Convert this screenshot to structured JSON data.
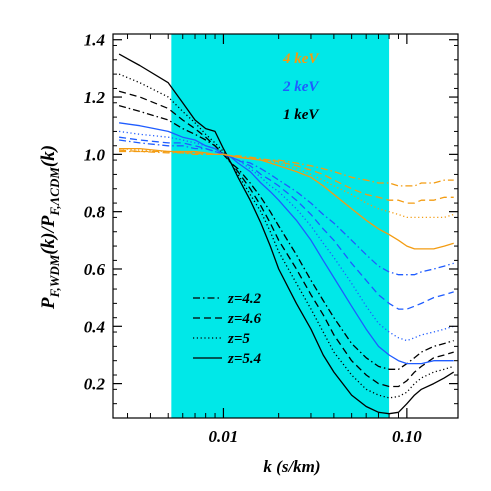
{
  "chart_data": {
    "type": "line",
    "xlabel": "k (s/km)",
    "ylabel_main": "P",
    "ylabel_sub1": "F,WDM",
    "ylabel_mid": "(k)/P",
    "ylabel_sub2": "F,ΛCDM",
    "ylabel_end": "(k)",
    "x_scale": "log",
    "xlim": [
      0.0025,
      0.19
    ],
    "ylim": [
      0.08,
      1.42
    ],
    "x_ticks": [
      {
        "value": 0.01,
        "label": "0.01"
      },
      {
        "value": 0.1,
        "label": "0.10"
      }
    ],
    "y_ticks": [
      {
        "value": 0.2,
        "label": "0.2"
      },
      {
        "value": 0.4,
        "label": "0.4"
      },
      {
        "value": 0.6,
        "label": "0.6"
      },
      {
        "value": 0.8,
        "label": "0.8"
      },
      {
        "value": 1.0,
        "label": "1.0"
      },
      {
        "value": 1.2,
        "label": "1.2"
      },
      {
        "value": 1.4,
        "label": "1.4"
      }
    ],
    "shaded_band": {
      "xmin": 0.0052,
      "xmax": 0.08,
      "color": "#00e8e8"
    },
    "grid": false,
    "legend_styles": [
      {
        "label": "z=4.2",
        "dash": "dashdot"
      },
      {
        "label": "z=4.6",
        "dash": "dashed"
      },
      {
        "label": "z=5",
        "dash": "dotted"
      },
      {
        "label": "z=5.4",
        "dash": "solid"
      }
    ],
    "mass_labels": [
      {
        "label": "4 keV",
        "color": "#f39c12"
      },
      {
        "label": "2 keV",
        "color": "#1f5cff"
      },
      {
        "label": "1 keV",
        "color": "#000000"
      }
    ],
    "series": [
      {
        "mass": "1 keV",
        "z": "5.4",
        "dash": "solid",
        "color": "#000000",
        "x": [
          0.0027,
          0.0035,
          0.005,
          0.006,
          0.007,
          0.008,
          0.009,
          0.01,
          0.011,
          0.012,
          0.014,
          0.016,
          0.018,
          0.02,
          0.025,
          0.03,
          0.035,
          0.04,
          0.05,
          0.06,
          0.07,
          0.08,
          0.09,
          0.1,
          0.11,
          0.12,
          0.14,
          0.16,
          0.18
        ],
        "y": [
          1.35,
          1.31,
          1.25,
          1.18,
          1.12,
          1.09,
          1.08,
          1.02,
          0.97,
          0.92,
          0.84,
          0.76,
          0.68,
          0.6,
          0.48,
          0.39,
          0.3,
          0.24,
          0.16,
          0.12,
          0.1,
          0.095,
          0.1,
          0.13,
          0.16,
          0.18,
          0.2,
          0.22,
          0.24
        ]
      },
      {
        "mass": "1 keV",
        "z": "5",
        "dash": "dotted",
        "color": "#000000",
        "x": [
          0.0027,
          0.0035,
          0.005,
          0.006,
          0.007,
          0.008,
          0.009,
          0.01,
          0.011,
          0.012,
          0.014,
          0.016,
          0.018,
          0.02,
          0.025,
          0.03,
          0.035,
          0.04,
          0.05,
          0.06,
          0.07,
          0.08,
          0.09,
          0.1,
          0.11,
          0.12,
          0.14,
          0.16,
          0.18
        ],
        "y": [
          1.28,
          1.25,
          1.2,
          1.15,
          1.11,
          1.07,
          1.04,
          1.01,
          0.97,
          0.93,
          0.86,
          0.8,
          0.73,
          0.66,
          0.55,
          0.46,
          0.38,
          0.31,
          0.23,
          0.18,
          0.16,
          0.15,
          0.155,
          0.17,
          0.2,
          0.22,
          0.24,
          0.25,
          0.26
        ]
      },
      {
        "mass": "1 keV",
        "z": "4.6",
        "dash": "dashed",
        "color": "#000000",
        "x": [
          0.0027,
          0.0035,
          0.005,
          0.006,
          0.007,
          0.008,
          0.009,
          0.01,
          0.011,
          0.012,
          0.014,
          0.016,
          0.018,
          0.02,
          0.025,
          0.03,
          0.035,
          0.04,
          0.05,
          0.06,
          0.07,
          0.08,
          0.09,
          0.1,
          0.11,
          0.12,
          0.14,
          0.16,
          0.18
        ],
        "y": [
          1.22,
          1.2,
          1.16,
          1.12,
          1.09,
          1.06,
          1.03,
          1.0,
          0.97,
          0.94,
          0.88,
          0.82,
          0.76,
          0.7,
          0.6,
          0.51,
          0.44,
          0.37,
          0.28,
          0.23,
          0.2,
          0.19,
          0.19,
          0.21,
          0.24,
          0.26,
          0.29,
          0.3,
          0.31
        ]
      },
      {
        "mass": "1 keV",
        "z": "4.2",
        "dash": "dashdot",
        "color": "#000000",
        "x": [
          0.0027,
          0.0035,
          0.005,
          0.006,
          0.007,
          0.008,
          0.009,
          0.01,
          0.011,
          0.012,
          0.014,
          0.016,
          0.018,
          0.02,
          0.025,
          0.03,
          0.035,
          0.04,
          0.05,
          0.06,
          0.07,
          0.08,
          0.09,
          0.1,
          0.11,
          0.12,
          0.14,
          0.16,
          0.18
        ],
        "y": [
          1.17,
          1.15,
          1.12,
          1.09,
          1.07,
          1.05,
          1.03,
          1.0,
          0.97,
          0.95,
          0.9,
          0.85,
          0.8,
          0.75,
          0.65,
          0.56,
          0.49,
          0.43,
          0.34,
          0.29,
          0.26,
          0.25,
          0.25,
          0.27,
          0.29,
          0.31,
          0.33,
          0.34,
          0.35
        ]
      },
      {
        "mass": "2 keV",
        "z": "5.4",
        "dash": "solid",
        "color": "#1f5cff",
        "x": [
          0.0027,
          0.0035,
          0.005,
          0.006,
          0.007,
          0.008,
          0.009,
          0.01,
          0.011,
          0.012,
          0.014,
          0.016,
          0.018,
          0.02,
          0.025,
          0.03,
          0.035,
          0.04,
          0.05,
          0.06,
          0.07,
          0.08,
          0.09,
          0.1,
          0.11,
          0.12,
          0.14,
          0.16,
          0.18
        ],
        "y": [
          1.11,
          1.1,
          1.08,
          1.06,
          1.05,
          1.03,
          1.02,
          1.0,
          0.99,
          0.97,
          0.94,
          0.9,
          0.87,
          0.84,
          0.77,
          0.7,
          0.63,
          0.57,
          0.47,
          0.39,
          0.33,
          0.3,
          0.28,
          0.27,
          0.27,
          0.27,
          0.28,
          0.28,
          0.28
        ]
      },
      {
        "mass": "2 keV",
        "z": "5",
        "dash": "dotted",
        "color": "#1f5cff",
        "x": [
          0.0027,
          0.0035,
          0.005,
          0.006,
          0.007,
          0.008,
          0.009,
          0.01,
          0.011,
          0.012,
          0.014,
          0.016,
          0.018,
          0.02,
          0.025,
          0.03,
          0.035,
          0.04,
          0.05,
          0.06,
          0.07,
          0.08,
          0.09,
          0.1,
          0.11,
          0.12,
          0.14,
          0.16,
          0.18
        ],
        "y": [
          1.08,
          1.07,
          1.06,
          1.05,
          1.04,
          1.03,
          1.02,
          1.0,
          0.99,
          0.98,
          0.95,
          0.92,
          0.89,
          0.87,
          0.81,
          0.75,
          0.69,
          0.64,
          0.55,
          0.47,
          0.41,
          0.38,
          0.36,
          0.35,
          0.36,
          0.37,
          0.38,
          0.39,
          0.4
        ]
      },
      {
        "mass": "2 keV",
        "z": "4.6",
        "dash": "dashed",
        "color": "#1f5cff",
        "x": [
          0.0027,
          0.0035,
          0.005,
          0.006,
          0.007,
          0.008,
          0.009,
          0.01,
          0.011,
          0.012,
          0.014,
          0.016,
          0.018,
          0.02,
          0.025,
          0.03,
          0.035,
          0.04,
          0.05,
          0.06,
          0.07,
          0.08,
          0.09,
          0.1,
          0.11,
          0.12,
          0.14,
          0.16,
          0.18
        ],
        "y": [
          1.06,
          1.05,
          1.04,
          1.04,
          1.03,
          1.02,
          1.01,
          1.0,
          0.99,
          0.98,
          0.96,
          0.93,
          0.91,
          0.89,
          0.84,
          0.79,
          0.74,
          0.7,
          0.62,
          0.56,
          0.51,
          0.48,
          0.46,
          0.46,
          0.47,
          0.48,
          0.5,
          0.51,
          0.52
        ]
      },
      {
        "mass": "2 keV",
        "z": "4.2",
        "dash": "dashdot",
        "color": "#1f5cff",
        "x": [
          0.0027,
          0.0035,
          0.005,
          0.006,
          0.007,
          0.008,
          0.009,
          0.01,
          0.011,
          0.012,
          0.014,
          0.016,
          0.018,
          0.02,
          0.025,
          0.03,
          0.035,
          0.04,
          0.05,
          0.06,
          0.07,
          0.08,
          0.09,
          0.1,
          0.11,
          0.12,
          0.14,
          0.16,
          0.18
        ],
        "y": [
          1.05,
          1.04,
          1.03,
          1.03,
          1.02,
          1.02,
          1.01,
          1.0,
          0.99,
          0.98,
          0.97,
          0.95,
          0.93,
          0.91,
          0.87,
          0.83,
          0.79,
          0.76,
          0.7,
          0.65,
          0.61,
          0.59,
          0.58,
          0.58,
          0.58,
          0.59,
          0.6,
          0.61,
          0.62
        ]
      },
      {
        "mass": "4 keV",
        "z": "5.4",
        "dash": "solid",
        "color": "#f39c12",
        "x": [
          0.0027,
          0.0035,
          0.005,
          0.006,
          0.007,
          0.008,
          0.009,
          0.01,
          0.011,
          0.012,
          0.014,
          0.016,
          0.018,
          0.02,
          0.025,
          0.03,
          0.035,
          0.04,
          0.05,
          0.06,
          0.07,
          0.08,
          0.09,
          0.1,
          0.11,
          0.12,
          0.14,
          0.16,
          0.18
        ],
        "y": [
          1.02,
          1.02,
          1.01,
          1.01,
          1.01,
          1.005,
          1.0,
          1.0,
          0.995,
          0.99,
          0.985,
          0.98,
          0.97,
          0.96,
          0.94,
          0.92,
          0.89,
          0.86,
          0.81,
          0.77,
          0.74,
          0.72,
          0.7,
          0.68,
          0.67,
          0.67,
          0.67,
          0.68,
          0.69
        ]
      },
      {
        "mass": "4 keV",
        "z": "5",
        "dash": "dotted",
        "color": "#f39c12",
        "x": [
          0.0027,
          0.0035,
          0.005,
          0.006,
          0.007,
          0.008,
          0.009,
          0.01,
          0.011,
          0.012,
          0.014,
          0.016,
          0.018,
          0.02,
          0.025,
          0.03,
          0.035,
          0.04,
          0.05,
          0.06,
          0.07,
          0.08,
          0.09,
          0.1,
          0.11,
          0.12,
          0.14,
          0.16,
          0.18
        ],
        "y": [
          1.02,
          1.015,
          1.01,
          1.01,
          1.005,
          1.005,
          1.0,
          1.0,
          0.995,
          0.99,
          0.985,
          0.98,
          0.975,
          0.97,
          0.95,
          0.93,
          0.91,
          0.89,
          0.86,
          0.83,
          0.81,
          0.8,
          0.79,
          0.78,
          0.78,
          0.78,
          0.78,
          0.78,
          0.79
        ]
      },
      {
        "mass": "4 keV",
        "z": "4.6",
        "dash": "dashed",
        "color": "#f39c12",
        "x": [
          0.0027,
          0.0035,
          0.005,
          0.006,
          0.007,
          0.008,
          0.009,
          0.01,
          0.011,
          0.012,
          0.014,
          0.016,
          0.018,
          0.02,
          0.025,
          0.03,
          0.035,
          0.04,
          0.05,
          0.06,
          0.07,
          0.08,
          0.09,
          0.1,
          0.11,
          0.12,
          0.14,
          0.16,
          0.18
        ],
        "y": [
          1.015,
          1.01,
          1.01,
          1.005,
          1.005,
          1.0,
          1.0,
          1.0,
          0.995,
          0.99,
          0.985,
          0.98,
          0.98,
          0.975,
          0.96,
          0.945,
          0.93,
          0.91,
          0.88,
          0.86,
          0.85,
          0.84,
          0.84,
          0.83,
          0.83,
          0.84,
          0.84,
          0.85,
          0.85
        ]
      },
      {
        "mass": "4 keV",
        "z": "4.2",
        "dash": "dashdot",
        "color": "#f39c12",
        "x": [
          0.0027,
          0.0035,
          0.005,
          0.006,
          0.007,
          0.008,
          0.009,
          0.01,
          0.011,
          0.012,
          0.014,
          0.016,
          0.018,
          0.02,
          0.025,
          0.03,
          0.035,
          0.04,
          0.05,
          0.06,
          0.07,
          0.08,
          0.09,
          0.1,
          0.11,
          0.12,
          0.14,
          0.16,
          0.18
        ],
        "y": [
          1.01,
          1.01,
          1.005,
          1.005,
          1.0,
          1.0,
          1.0,
          1.0,
          0.995,
          0.995,
          0.99,
          0.985,
          0.98,
          0.98,
          0.97,
          0.96,
          0.95,
          0.94,
          0.92,
          0.91,
          0.9,
          0.9,
          0.89,
          0.89,
          0.89,
          0.9,
          0.9,
          0.91,
          0.91
        ]
      }
    ]
  }
}
